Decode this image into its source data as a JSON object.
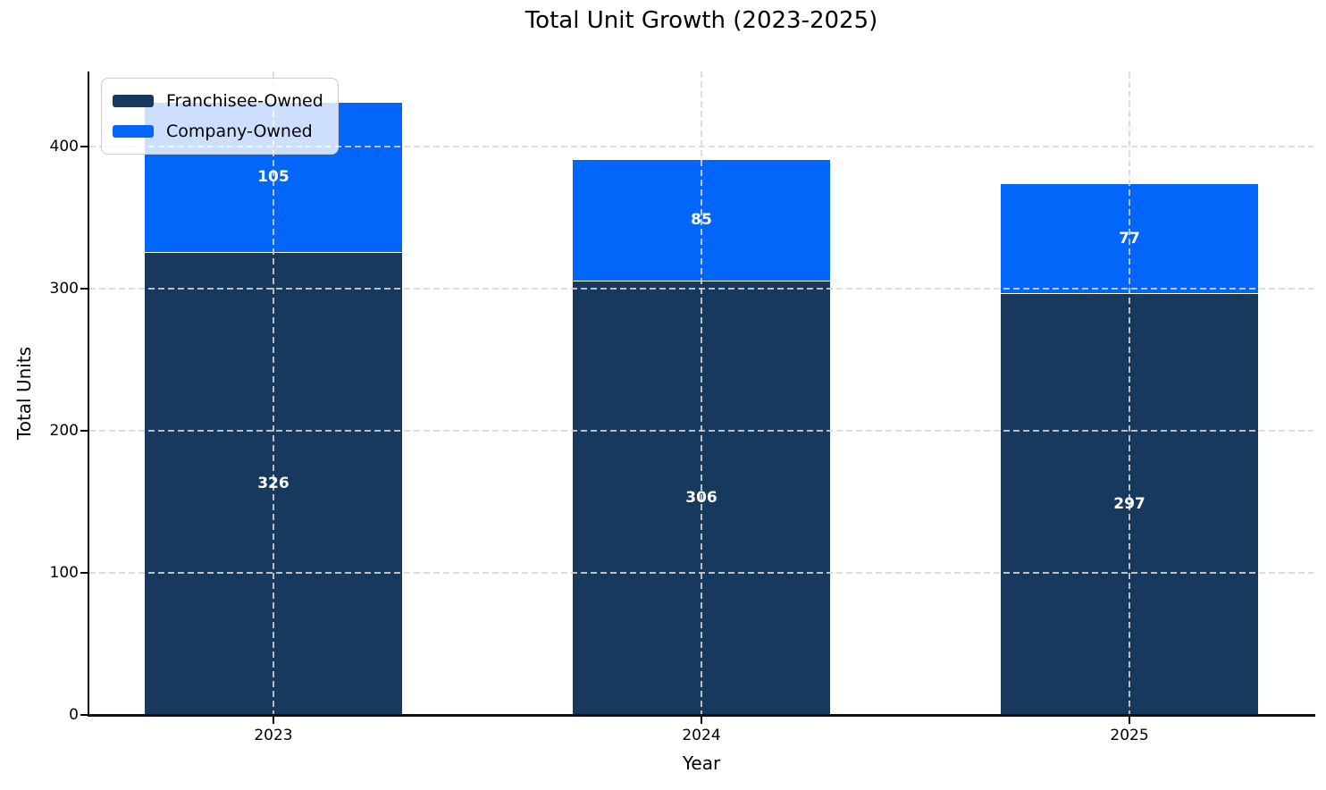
{
  "chart_data": {
    "type": "bar",
    "stacked": true,
    "title": "Total Unit Growth (2023-2025)",
    "xlabel": "Year",
    "ylabel": "Total Units",
    "categories": [
      "2023",
      "2024",
      "2025"
    ],
    "series": [
      {
        "name": "Franchisee-Owned",
        "color": "#17395e",
        "values": [
          326,
          306,
          297
        ]
      },
      {
        "name": "Company-Owned",
        "color": "#0266fb",
        "values": [
          105,
          85,
          77
        ]
      }
    ],
    "yticks": [
      0,
      100,
      200,
      300,
      400
    ],
    "ylim": [
      0,
      453
    ],
    "grid": true,
    "grid_style": "dashed",
    "legend_position": "upper-left",
    "value_label_color": "#ffffff"
  }
}
